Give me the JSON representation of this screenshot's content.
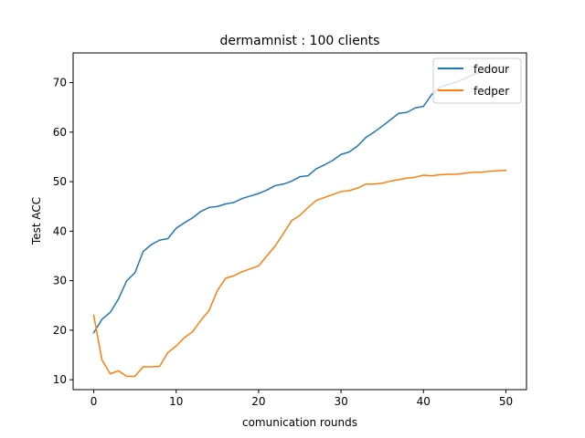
{
  "chart_data": {
    "type": "line",
    "title": "dermamnist : 100 clients",
    "xlabel": "comunication rounds",
    "ylabel": "Test ACC",
    "xlim": [
      -2.5,
      52.5
    ],
    "ylim": [
      8,
      76
    ],
    "xticks": [
      0,
      10,
      20,
      30,
      40,
      50
    ],
    "yticks": [
      10,
      20,
      30,
      40,
      50,
      60,
      70
    ],
    "grid": false,
    "legend_position": "top-right",
    "x": [
      0,
      1,
      2,
      3,
      4,
      5,
      6,
      7,
      8,
      9,
      10,
      11,
      12,
      13,
      14,
      15,
      16,
      17,
      18,
      19,
      20,
      21,
      22,
      23,
      24,
      25,
      26,
      27,
      28,
      29,
      30,
      31,
      32,
      33,
      34,
      35,
      36,
      37,
      38,
      39,
      40,
      41,
      42,
      43,
      44,
      45,
      46,
      47,
      48,
      49,
      50
    ],
    "series": [
      {
        "name": "fedour",
        "color": "#1f77b4",
        "values": [
          19.5,
          22.2,
          23.6,
          26.3,
          30.0,
          31.6,
          35.9,
          37.3,
          38.2,
          38.5,
          40.6,
          41.7,
          42.7,
          44.0,
          44.8,
          45.0,
          45.5,
          45.8,
          46.6,
          47.1,
          47.6,
          48.3,
          49.2,
          49.5,
          50.1,
          51.0,
          51.2,
          52.6,
          53.4,
          54.3,
          55.5,
          56.0,
          57.2,
          58.9,
          60.0,
          61.2,
          62.5,
          63.8,
          64.0,
          64.9,
          65.2,
          67.6,
          69.1,
          69.6,
          70.1,
          70.8,
          71.6,
          72.2,
          72.7,
          73.1,
          73.4
        ]
      },
      {
        "name": "fedper",
        "color": "#ff7f0e",
        "values": [
          23.0,
          14.0,
          11.2,
          11.8,
          10.7,
          10.7,
          12.6,
          12.6,
          12.7,
          15.5,
          16.8,
          18.5,
          19.7,
          22.0,
          24.0,
          28.0,
          30.5,
          31.0,
          31.8,
          32.4,
          33.0,
          35.0,
          37.0,
          39.5,
          42.1,
          43.2,
          44.8,
          46.2,
          46.8,
          47.4,
          48.0,
          48.2,
          48.7,
          49.5,
          49.5,
          49.7,
          50.1,
          50.4,
          50.7,
          50.9,
          51.3,
          51.2,
          51.4,
          51.5,
          51.5,
          51.7,
          51.9,
          51.9,
          52.1,
          52.2,
          52.3
        ]
      }
    ]
  }
}
